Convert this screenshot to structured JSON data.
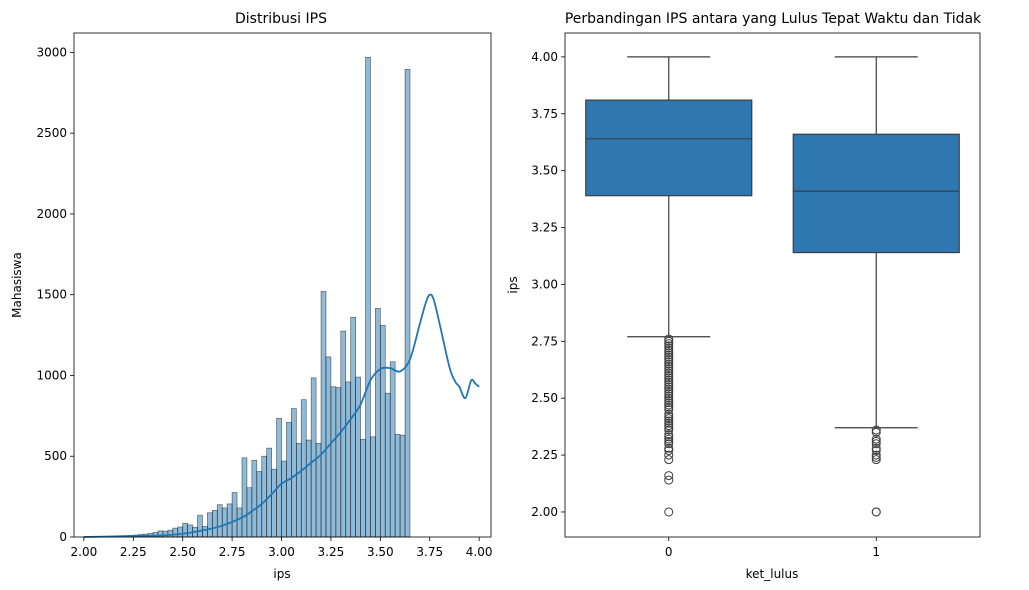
{
  "chart_data": [
    {
      "type": "histogram",
      "title": "Distribusi IPS",
      "xlabel": "ips",
      "ylabel": "Mahasiswa",
      "xlim": [
        1.95,
        4.06
      ],
      "ylim": [
        0,
        3120
      ],
      "xticks": [
        2.0,
        2.25,
        2.5,
        2.75,
        3.0,
        3.25,
        3.5,
        3.75,
        4.0
      ],
      "xtick_labels": [
        "2.00",
        "2.25",
        "2.50",
        "2.75",
        "3.00",
        "3.25",
        "3.50",
        "3.75",
        "4.00"
      ],
      "yticks": [
        0,
        500,
        1000,
        1500,
        2000,
        2500,
        3000
      ],
      "ytick_labels": [
        "0",
        "500",
        "1000",
        "1500",
        "2000",
        "2500",
        "3000"
      ],
      "bin_start": 2.0,
      "bin_width": 0.025,
      "counts": [
        2,
        2,
        2,
        3,
        3,
        4,
        5,
        6,
        8,
        10,
        12,
        15,
        18,
        22,
        28,
        38,
        36,
        42,
        55,
        62,
        85,
        75,
        60,
        135,
        65,
        150,
        165,
        200,
        180,
        205,
        275,
        180,
        490,
        305,
        475,
        405,
        500,
        550,
        420,
        735,
        470,
        710,
        795,
        580,
        850,
        600,
        985,
        580,
        1520,
        1115,
        930,
        925,
        1275,
        960,
        1360,
        990,
        605,
        2970,
        620,
        1415,
        1310,
        890,
        1085,
        635,
        630,
        2895
      ],
      "kde": {
        "x": [
          2.0,
          2.2,
          2.4,
          2.5,
          2.6,
          2.7,
          2.8,
          2.85,
          2.9,
          2.95,
          3.0,
          3.05,
          3.1,
          3.15,
          3.2,
          3.25,
          3.3,
          3.35,
          3.4,
          3.45,
          3.5,
          3.55,
          3.6,
          3.65,
          3.7,
          3.73,
          3.75,
          3.77,
          3.8,
          3.85,
          3.88,
          3.9,
          3.93,
          3.96,
          3.98,
          4.0
        ],
        "y": [
          0,
          5,
          10,
          20,
          40,
          70,
          120,
          160,
          205,
          265,
          330,
          365,
          410,
          460,
          510,
          580,
          650,
          730,
          820,
          970,
          1040,
          1045,
          1025,
          1100,
          1320,
          1450,
          1500,
          1470,
          1320,
          1050,
          960,
          930,
          860,
          970,
          950,
          930
        ]
      },
      "bar_color": "#1f77b4",
      "line_color": "#1f77b4"
    },
    {
      "type": "box",
      "title": "Perbandingan IPS antara yang Lulus Tepat Waktu dan Tidak",
      "xlabel": "ket_lulus",
      "ylabel": "ips",
      "ylim": [
        1.89,
        4.105
      ],
      "categories": [
        "0",
        "1"
      ],
      "yticks": [
        2.0,
        2.25,
        2.5,
        2.75,
        3.0,
        3.25,
        3.5,
        3.75,
        4.0
      ],
      "ytick_labels": [
        "2.00",
        "2.25",
        "2.50",
        "2.75",
        "3.00",
        "3.25",
        "3.50",
        "3.75",
        "4.00"
      ],
      "boxes": [
        {
          "category": "0",
          "q1": 3.39,
          "median": 3.64,
          "q3": 3.81,
          "whisker_low": 2.77,
          "whisker_high": 4.0,
          "outliers": [
            2.76,
            2.75,
            2.74,
            2.73,
            2.72,
            2.71,
            2.7,
            2.69,
            2.68,
            2.67,
            2.66,
            2.65,
            2.64,
            2.63,
            2.62,
            2.61,
            2.6,
            2.59,
            2.58,
            2.57,
            2.56,
            2.55,
            2.54,
            2.53,
            2.52,
            2.51,
            2.5,
            2.49,
            2.48,
            2.47,
            2.46,
            2.45,
            2.43,
            2.42,
            2.41,
            2.4,
            2.39,
            2.38,
            2.37,
            2.36,
            2.34,
            2.33,
            2.32,
            2.31,
            2.3,
            2.28,
            2.27,
            2.25,
            2.23,
            2.16,
            2.14,
            2.0
          ]
        },
        {
          "category": "1",
          "q1": 3.14,
          "median": 3.41,
          "q3": 3.66,
          "whisker_low": 2.37,
          "whisker_high": 4.0,
          "outliers": [
            2.36,
            2.35,
            2.32,
            2.31,
            2.3,
            2.28,
            2.27,
            2.25,
            2.24,
            2.23,
            2.0,
            2.0
          ]
        }
      ],
      "box_color": "#2f77b1"
    }
  ]
}
